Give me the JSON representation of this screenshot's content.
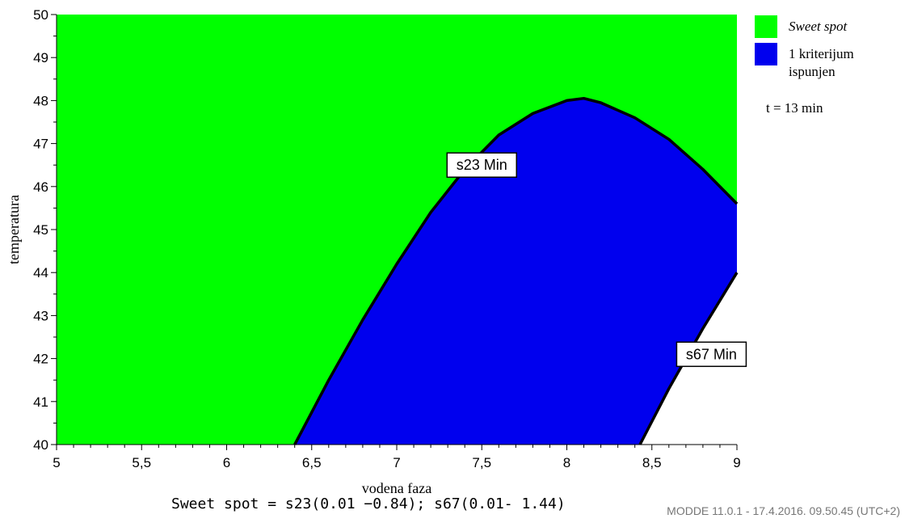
{
  "chart_data": {
    "type": "contour-region",
    "xlabel": "vodena faza",
    "ylabel": "temperatura",
    "xlim": [
      5,
      9
    ],
    "ylim": [
      40,
      50
    ],
    "xticks": [
      "5",
      "5,5",
      "6",
      "6,5",
      "7",
      "7,5",
      "8",
      "8,5",
      "9"
    ],
    "yticks": [
      "40",
      "41",
      "42",
      "43",
      "44",
      "45",
      "46",
      "47",
      "48",
      "49",
      "50"
    ],
    "grid": false,
    "legend_position": "right",
    "legend": [
      {
        "label": "Sweet spot",
        "color": "#00ff00",
        "italic": true
      },
      {
        "label_line1": "1 kriterijum",
        "label_line2": "ispunjen",
        "color": "#0000ee"
      }
    ],
    "time_label": "t = 13 min",
    "regions": {
      "sweet_spot_color": "#00ff00",
      "one_criterion_color": "#0000ee",
      "none_color": "#ffffff"
    },
    "boundaries": [
      {
        "name": "s23 Min",
        "points": [
          [
            6.4,
            40
          ],
          [
            6.6,
            41.5
          ],
          [
            6.8,
            42.9
          ],
          [
            7.0,
            44.2
          ],
          [
            7.2,
            45.4
          ],
          [
            7.4,
            46.4
          ],
          [
            7.6,
            47.2
          ],
          [
            7.8,
            47.7
          ],
          [
            8.0,
            48.0
          ],
          [
            8.1,
            48.05
          ],
          [
            8.2,
            47.95
          ],
          [
            8.4,
            47.6
          ],
          [
            8.6,
            47.1
          ],
          [
            8.8,
            46.4
          ],
          [
            9.0,
            45.6
          ]
        ]
      },
      {
        "name": "s67 Min",
        "points": [
          [
            8.43,
            40
          ],
          [
            8.6,
            41.3
          ],
          [
            8.8,
            42.7
          ],
          [
            9.0,
            44.0
          ]
        ]
      }
    ],
    "annotations": [
      {
        "text": "s23 Min",
        "x": 7.5,
        "y": 46.5
      },
      {
        "text": "s67 Min",
        "x": 8.85,
        "y": 42.1
      }
    ]
  },
  "formula": "Sweet spot = s23(0.01 −0.84); s67(0.01- 1.44)",
  "footer": "MODDE 11.0.1 - 17.4.2016. 09.50.45 (UTC+2)"
}
